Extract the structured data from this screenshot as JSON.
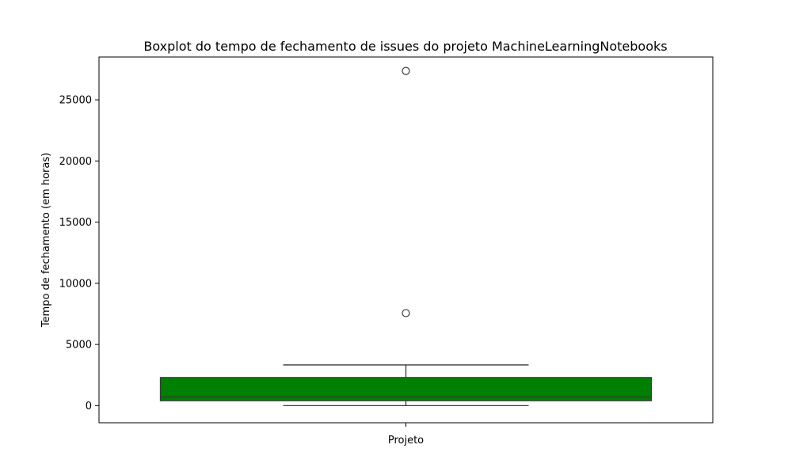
{
  "chart_data": {
    "type": "boxplot",
    "title": "Boxplot do tempo de fechamento de issues do projeto MachineLearningNotebooks",
    "xlabel": "",
    "ylabel": "Tempo de fechamento (em horas)",
    "categories": [
      "Projeto"
    ],
    "ylim": [
      -1400,
      28500
    ],
    "yticks": [
      0,
      5000,
      10000,
      15000,
      20000,
      25000
    ],
    "grid": false,
    "box_color": "#008000",
    "boxes": [
      {
        "category": "Projeto",
        "whisker_low": 0,
        "q1": 400,
        "median": 700,
        "q3": 2300,
        "whisker_high": 3330,
        "outliers": [
          7560,
          27360
        ]
      }
    ]
  }
}
